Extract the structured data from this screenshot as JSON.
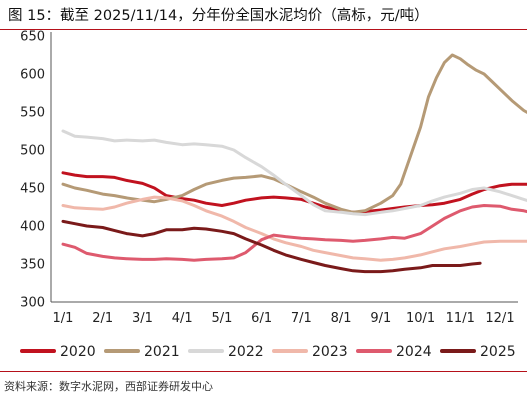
{
  "title": "图 15：截至 2025/11/14，分年份全国水泥均价（高标，元/吨）",
  "source": "资料来源：数字水泥网，西部证券研发中心",
  "chart_data": {
    "type": "line",
    "title": "图 15：截至 2025/11/14，分年份全国水泥均价（高标，元/吨）",
    "ylabel": "",
    "xlabel": "",
    "ylim": [
      300,
      650
    ],
    "yticks": [
      300,
      350,
      400,
      450,
      500,
      550,
      600,
      650
    ],
    "xticks": [
      "1/1",
      "2/1",
      "3/1",
      "4/1",
      "5/1",
      "6/1",
      "7/1",
      "8/1",
      "9/1",
      "10/1",
      "11/1",
      "12/1"
    ],
    "grid": false,
    "legend_position": "bottom",
    "series": [
      {
        "name": "2020",
        "color": "#c1121f",
        "points": [
          [
            0,
            470
          ],
          [
            0.3,
            467
          ],
          [
            0.6,
            465
          ],
          [
            1.0,
            465
          ],
          [
            1.3,
            464
          ],
          [
            1.6,
            460
          ],
          [
            2.0,
            456
          ],
          [
            2.3,
            450
          ],
          [
            2.6,
            440
          ],
          [
            3.0,
            436
          ],
          [
            3.3,
            434
          ],
          [
            3.6,
            430
          ],
          [
            4.0,
            427
          ],
          [
            4.3,
            430
          ],
          [
            4.6,
            434
          ],
          [
            5.0,
            437
          ],
          [
            5.3,
            438
          ],
          [
            5.6,
            437
          ],
          [
            6.0,
            435
          ],
          [
            6.3,
            430
          ],
          [
            6.6,
            425
          ],
          [
            7.0,
            420
          ],
          [
            7.3,
            418
          ],
          [
            7.6,
            419
          ],
          [
            8.0,
            421
          ],
          [
            8.3,
            423
          ],
          [
            8.6,
            425
          ],
          [
            9.0,
            427
          ],
          [
            9.3,
            428
          ],
          [
            9.6,
            430
          ],
          [
            10.0,
            435
          ],
          [
            10.3,
            442
          ],
          [
            10.6,
            448
          ],
          [
            11.0,
            453
          ],
          [
            11.3,
            455
          ],
          [
            11.6,
            455
          ],
          [
            12.0,
            455
          ]
        ]
      },
      {
        "name": "2021",
        "color": "#b59a76",
        "points": [
          [
            0,
            455
          ],
          [
            0.3,
            450
          ],
          [
            0.6,
            447
          ],
          [
            1.0,
            442
          ],
          [
            1.3,
            440
          ],
          [
            1.6,
            437
          ],
          [
            2.0,
            434
          ],
          [
            2.3,
            432
          ],
          [
            2.6,
            435
          ],
          [
            3.0,
            440
          ],
          [
            3.3,
            448
          ],
          [
            3.6,
            455
          ],
          [
            4.0,
            460
          ],
          [
            4.3,
            463
          ],
          [
            4.6,
            464
          ],
          [
            5.0,
            466
          ],
          [
            5.3,
            462
          ],
          [
            5.6,
            455
          ],
          [
            6.0,
            445
          ],
          [
            6.3,
            438
          ],
          [
            6.6,
            430
          ],
          [
            7.0,
            422
          ],
          [
            7.3,
            418
          ],
          [
            7.6,
            420
          ],
          [
            8.0,
            430
          ],
          [
            8.3,
            440
          ],
          [
            8.5,
            455
          ],
          [
            8.8,
            500
          ],
          [
            9.0,
            530
          ],
          [
            9.2,
            570
          ],
          [
            9.4,
            595
          ],
          [
            9.6,
            615
          ],
          [
            9.8,
            625
          ],
          [
            10.0,
            620
          ],
          [
            10.2,
            612
          ],
          [
            10.4,
            605
          ],
          [
            10.6,
            600
          ],
          [
            10.8,
            590
          ],
          [
            11.0,
            580
          ],
          [
            11.3,
            565
          ],
          [
            11.6,
            552
          ],
          [
            12.0,
            540
          ]
        ]
      },
      {
        "name": "2022",
        "color": "#d8d8d8",
        "points": [
          [
            0,
            525
          ],
          [
            0.3,
            518
          ],
          [
            0.6,
            517
          ],
          [
            1.0,
            515
          ],
          [
            1.3,
            512
          ],
          [
            1.6,
            513
          ],
          [
            2.0,
            512
          ],
          [
            2.3,
            513
          ],
          [
            2.6,
            510
          ],
          [
            3.0,
            507
          ],
          [
            3.3,
            508
          ],
          [
            3.6,
            507
          ],
          [
            4.0,
            505
          ],
          [
            4.3,
            500
          ],
          [
            4.6,
            490
          ],
          [
            5.0,
            478
          ],
          [
            5.3,
            467
          ],
          [
            5.6,
            455
          ],
          [
            6.0,
            440
          ],
          [
            6.3,
            428
          ],
          [
            6.6,
            420
          ],
          [
            7.0,
            418
          ],
          [
            7.3,
            416
          ],
          [
            7.6,
            415
          ],
          [
            8.0,
            418
          ],
          [
            8.3,
            420
          ],
          [
            8.6,
            423
          ],
          [
            9.0,
            427
          ],
          [
            9.3,
            433
          ],
          [
            9.6,
            438
          ],
          [
            10.0,
            443
          ],
          [
            10.3,
            448
          ],
          [
            10.6,
            450
          ],
          [
            11.0,
            445
          ],
          [
            11.3,
            440
          ],
          [
            11.6,
            435
          ],
          [
            12.0,
            428
          ]
        ]
      },
      {
        "name": "2023",
        "color": "#f0b8aa",
        "points": [
          [
            0,
            427
          ],
          [
            0.3,
            424
          ],
          [
            0.6,
            423
          ],
          [
            1.0,
            422
          ],
          [
            1.3,
            425
          ],
          [
            1.6,
            430
          ],
          [
            2.0,
            435
          ],
          [
            2.3,
            438
          ],
          [
            2.6,
            437
          ],
          [
            3.0,
            433
          ],
          [
            3.3,
            427
          ],
          [
            3.6,
            420
          ],
          [
            4.0,
            413
          ],
          [
            4.3,
            406
          ],
          [
            4.6,
            398
          ],
          [
            5.0,
            390
          ],
          [
            5.3,
            383
          ],
          [
            5.6,
            378
          ],
          [
            6.0,
            373
          ],
          [
            6.3,
            368
          ],
          [
            6.6,
            365
          ],
          [
            7.0,
            361
          ],
          [
            7.3,
            358
          ],
          [
            7.6,
            357
          ],
          [
            8.0,
            355
          ],
          [
            8.3,
            356
          ],
          [
            8.6,
            358
          ],
          [
            9.0,
            362
          ],
          [
            9.3,
            366
          ],
          [
            9.6,
            370
          ],
          [
            10.0,
            373
          ],
          [
            10.3,
            376
          ],
          [
            10.6,
            379
          ],
          [
            11.0,
            380
          ],
          [
            11.3,
            380
          ],
          [
            11.6,
            380
          ],
          [
            12.0,
            380
          ]
        ]
      },
      {
        "name": "2024",
        "color": "#de5a6e",
        "points": [
          [
            0,
            376
          ],
          [
            0.3,
            372
          ],
          [
            0.6,
            364
          ],
          [
            1.0,
            360
          ],
          [
            1.3,
            358
          ],
          [
            1.6,
            357
          ],
          [
            2.0,
            356
          ],
          [
            2.3,
            356
          ],
          [
            2.6,
            357
          ],
          [
            3.0,
            356
          ],
          [
            3.3,
            355
          ],
          [
            3.6,
            356
          ],
          [
            4.0,
            357
          ],
          [
            4.3,
            358
          ],
          [
            4.6,
            365
          ],
          [
            5.0,
            382
          ],
          [
            5.3,
            388
          ],
          [
            5.6,
            386
          ],
          [
            6.0,
            384
          ],
          [
            6.3,
            383
          ],
          [
            6.6,
            382
          ],
          [
            7.0,
            381
          ],
          [
            7.3,
            380
          ],
          [
            7.6,
            381
          ],
          [
            8.0,
            383
          ],
          [
            8.3,
            385
          ],
          [
            8.6,
            384
          ],
          [
            9.0,
            390
          ],
          [
            9.3,
            400
          ],
          [
            9.6,
            410
          ],
          [
            10.0,
            420
          ],
          [
            10.3,
            425
          ],
          [
            10.6,
            427
          ],
          [
            11.0,
            426
          ],
          [
            11.3,
            422
          ],
          [
            11.6,
            420
          ],
          [
            12.0,
            415
          ]
        ]
      },
      {
        "name": "2025",
        "color": "#7a1a1a",
        "points": [
          [
            0,
            406
          ],
          [
            0.3,
            403
          ],
          [
            0.6,
            400
          ],
          [
            1.0,
            398
          ],
          [
            1.3,
            394
          ],
          [
            1.6,
            390
          ],
          [
            2.0,
            387
          ],
          [
            2.3,
            390
          ],
          [
            2.6,
            395
          ],
          [
            3.0,
            395
          ],
          [
            3.3,
            397
          ],
          [
            3.6,
            396
          ],
          [
            4.0,
            393
          ],
          [
            4.3,
            390
          ],
          [
            4.6,
            383
          ],
          [
            5.0,
            375
          ],
          [
            5.3,
            368
          ],
          [
            5.6,
            362
          ],
          [
            6.0,
            356
          ],
          [
            6.3,
            352
          ],
          [
            6.6,
            348
          ],
          [
            7.0,
            344
          ],
          [
            7.3,
            341
          ],
          [
            7.6,
            340
          ],
          [
            8.0,
            340
          ],
          [
            8.3,
            341
          ],
          [
            8.6,
            343
          ],
          [
            9.0,
            345
          ],
          [
            9.3,
            348
          ],
          [
            9.6,
            348
          ],
          [
            10.0,
            348
          ],
          [
            10.3,
            350
          ],
          [
            10.5,
            351
          ]
        ]
      }
    ]
  }
}
